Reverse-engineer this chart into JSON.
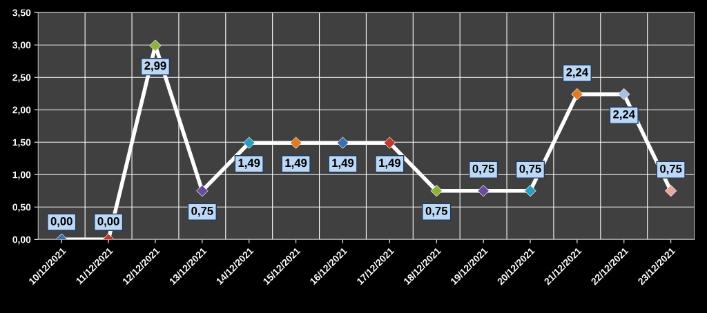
{
  "chart_data": {
    "type": "line",
    "categories": [
      "10/12/2021",
      "11/12/2021",
      "12/12/2021",
      "13/12/2021",
      "14/12/2021",
      "15/12/2021",
      "16/12/2021",
      "17/12/2021",
      "18/12/2021",
      "19/12/2021",
      "20/12/2021",
      "21/12/2021",
      "22/12/2021",
      "23/12/2021"
    ],
    "series": [
      {
        "color": "#ffffff",
        "values": [
          0,
          0,
          2.99,
          0.75,
          1.49,
          1.49,
          1.49,
          1.49,
          0.75,
          0.75,
          0.75,
          2.24,
          2.24,
          0.75
        ],
        "value_labels": [
          "0,00",
          "0,00",
          "2,99",
          "0,75",
          "1,49",
          "1,49",
          "1,49",
          "1,49",
          "0,75",
          "0,75",
          "0,75",
          "2,24",
          "2,24",
          "0,75"
        ],
        "colors": [
          "#3a6fb0",
          "#c0392b",
          "#8db33a",
          "#6a4c9c",
          "#2aa0c0",
          "#e07b22",
          "#3a6fb0",
          "#c0392b",
          "#8db33a",
          "#6a4c9c",
          "#2aa0c0",
          "#e07b22",
          "#a8c0e0",
          "#e8a8a0"
        ]
      }
    ],
    "ylim": [
      0,
      3.5
    ],
    "yticks": [
      {
        "value": 0,
        "label": "0,00"
      },
      {
        "value": 0.5,
        "label": "0,50"
      },
      {
        "value": 1,
        "label": "1,00"
      },
      {
        "value": 1.5,
        "label": "1,50"
      },
      {
        "value": 2,
        "label": "2,00"
      },
      {
        "value": 2.5,
        "label": "2,50"
      },
      {
        "value": 3,
        "label": "3,00"
      },
      {
        "value": 3.5,
        "label": "3,50"
      }
    ],
    "grid": true,
    "marker": "diamond",
    "line_style": "solid"
  }
}
